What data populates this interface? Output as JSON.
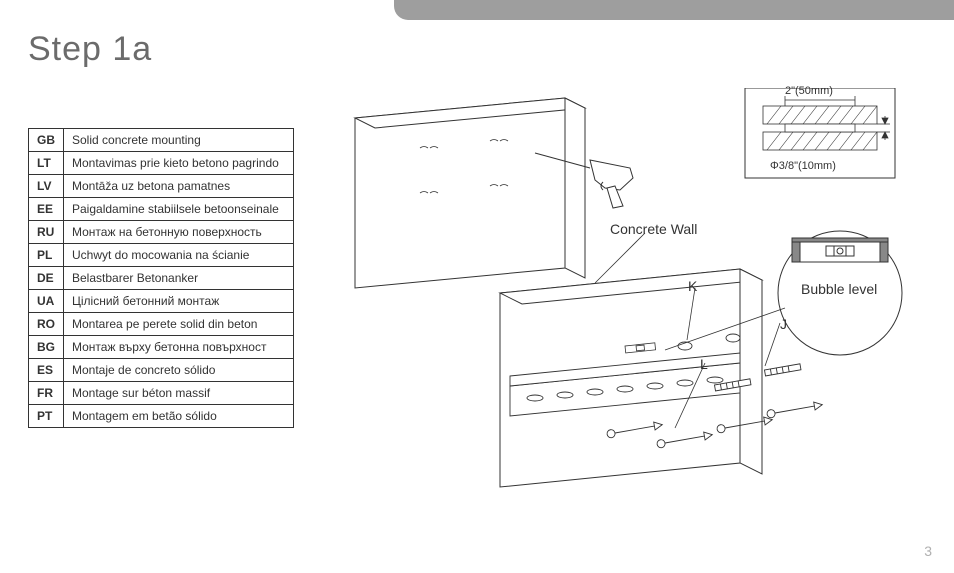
{
  "title": "Step 1a",
  "page_number": "3",
  "table": {
    "rows": [
      {
        "code": "GB",
        "desc": "Solid concrete mounting"
      },
      {
        "code": "LT",
        "desc": "Montavimas prie kieto betono pagrindo"
      },
      {
        "code": "LV",
        "desc": "Montāža uz betona pamatnes"
      },
      {
        "code": "EE",
        "desc": "Paigaldamine stabiilsele betoonseinale"
      },
      {
        "code": "RU",
        "desc": "Монтаж на бетонную поверхность"
      },
      {
        "code": "PL",
        "desc": "Uchwyt do mocowania na ścianie"
      },
      {
        "code": "DE",
        "desc": "Belastbarer Betonanker"
      },
      {
        "code": "UA",
        "desc": "Цілісний бетонний монтаж"
      },
      {
        "code": "RO",
        "desc": "Montarea pe perete solid din beton"
      },
      {
        "code": "BG",
        "desc": "Монтаж върху бетонна повърхност"
      },
      {
        "code": "ES",
        "desc": "Montaje de concreto sólido"
      },
      {
        "code": "FR",
        "desc": "Montage sur béton massif"
      },
      {
        "code": "PT",
        "desc": "Montagem em betão sólido"
      }
    ]
  },
  "diagram": {
    "labels": {
      "concrete_wall": "Concrete Wall",
      "bubble_level": "Bubble level",
      "K": "K",
      "J": "J",
      "L": "L",
      "width": "2\"(50mm)",
      "diameter": "Φ3/8\"(10mm)"
    },
    "colors": {
      "line": "#333333",
      "fill_light": "#ffffff",
      "grey": "#888888"
    }
  }
}
